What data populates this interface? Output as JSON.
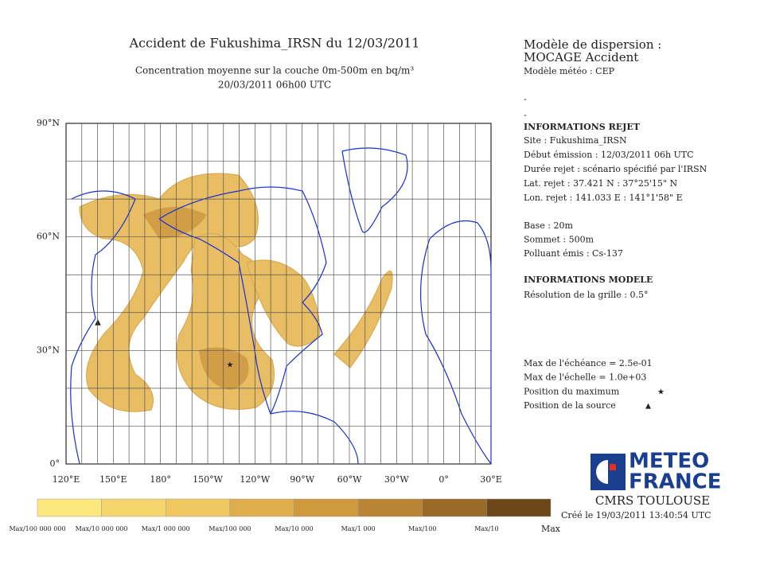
{
  "header": {
    "title": "Accident de Fukushima_IRSN du 12/03/2011",
    "subtitle": "Concentration moyenne sur la couche 0m-500m en bq/m³",
    "date": "20/03/2011 06h00 UTC"
  },
  "model": {
    "title": "Modèle de dispersion :",
    "name": "MOCAGE Accident",
    "meteo": "Modèle météo : CEP",
    "dashes": [
      "-",
      "-"
    ]
  },
  "info_rejet": {
    "heading": "INFORMATIONS REJET",
    "lines": [
      "Site : Fukushima_IRSN",
      "Début émission : 12/03/2011 06h UTC",
      "Durée rejet : scénario spécifié par l'IRSN",
      "Lat. rejet : 37.421 N : 37°25'15\" N",
      "Lon. rejet : 141.033 E : 141°1'58\" E"
    ],
    "source_lines": [
      "Base : 20m",
      "Sommet : 500m",
      "Polluant émis : Cs-137"
    ]
  },
  "info_modele": {
    "heading": "INFORMATIONS MODELE",
    "lines": [
      "Résolution de la grille : 0.5°"
    ]
  },
  "maxima": {
    "lines": [
      "Max de l'échéance = 2.5e-01",
      "Max de l'échelle = 1.0e+03",
      "Position du maximum",
      "Position de la source"
    ]
  },
  "map": {
    "lat_labels": [
      "90°N",
      "60°N",
      "30°N",
      "0°"
    ],
    "lon_labels": [
      "120°E",
      "150°E",
      "180°",
      "150°W",
      "120°W",
      "90°W",
      "60°W",
      "30°W",
      "0°",
      "30°E"
    ]
  },
  "legend": {
    "colors": [
      "#fbe97e",
      "#f6d66c",
      "#f0c860",
      "#e0ad4c",
      "#cf9a3e",
      "#b98434",
      "#9a6a28",
      "#6e4718"
    ],
    "labels": [
      "Max/100 000 000",
      "Max/10 000 000",
      "Max/1 000 000",
      "Max/100 000",
      "Max/10 000",
      "Max/1 000",
      "Max/100",
      "Max/10",
      "Max"
    ]
  },
  "logo": {
    "line1": "METEO",
    "line2": "FRANCE",
    "center": "CMRS TOULOUSE",
    "created": "Créé le 19/03/2011 13:40:54 UTC"
  }
}
